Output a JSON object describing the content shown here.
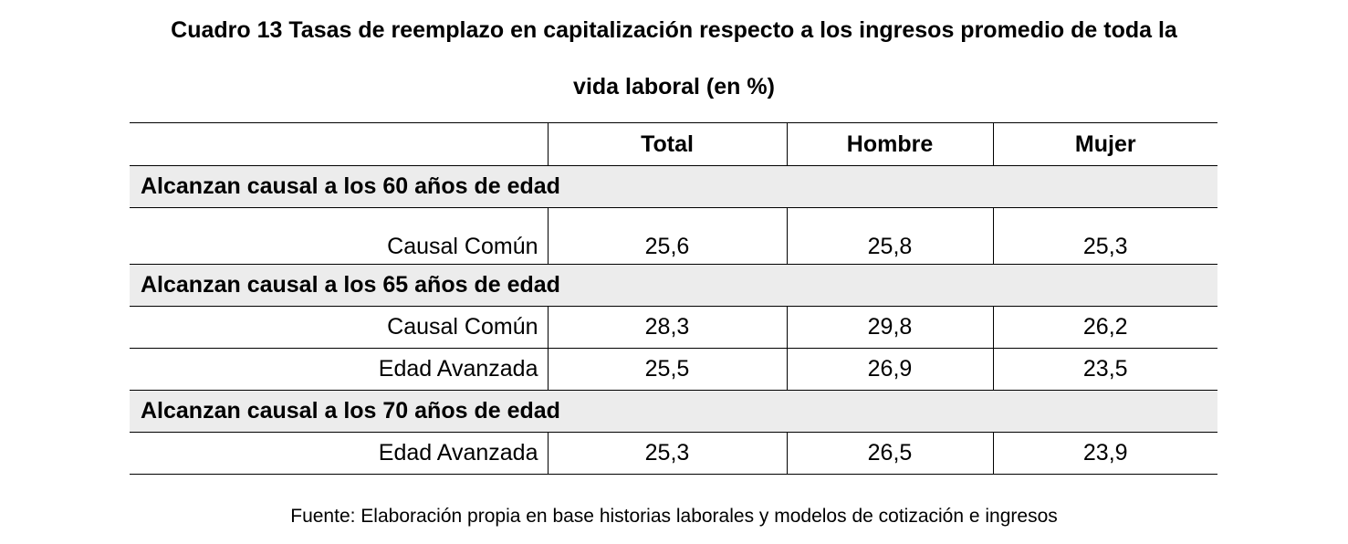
{
  "title": {
    "line1": "Cuadro 13 Tasas de reemplazo en capitalización respecto a los ingresos promedio de toda la",
    "line2": "vida laboral (en %)"
  },
  "table": {
    "columns": [
      "",
      "Total",
      "Hombre",
      "Mujer"
    ],
    "groups": [
      {
        "heading": "Alcanzan causal a los 60 años de edad",
        "rows": [
          {
            "label": "Causal Común",
            "total": "25,6",
            "hombre": "25,8",
            "mujer": "25,3"
          }
        ]
      },
      {
        "heading": "Alcanzan causal a los 65 años de edad",
        "rows": [
          {
            "label": "Causal Común",
            "total": "28,3",
            "hombre": "29,8",
            "mujer": "26,2"
          },
          {
            "label": "Edad Avanzada",
            "total": "25,5",
            "hombre": "26,9",
            "mujer": "23,5"
          }
        ]
      },
      {
        "heading": "Alcanzan causal a los 70 años de edad",
        "rows": [
          {
            "label": "Edad Avanzada",
            "total": "25,3",
            "hombre": "26,5",
            "mujer": "23,9"
          }
        ]
      }
    ]
  },
  "source": "Fuente: Elaboración propia en base historias laborales y modelos de cotización e ingresos",
  "colors": {
    "group_background": "#ececec",
    "rule": "#000000"
  }
}
